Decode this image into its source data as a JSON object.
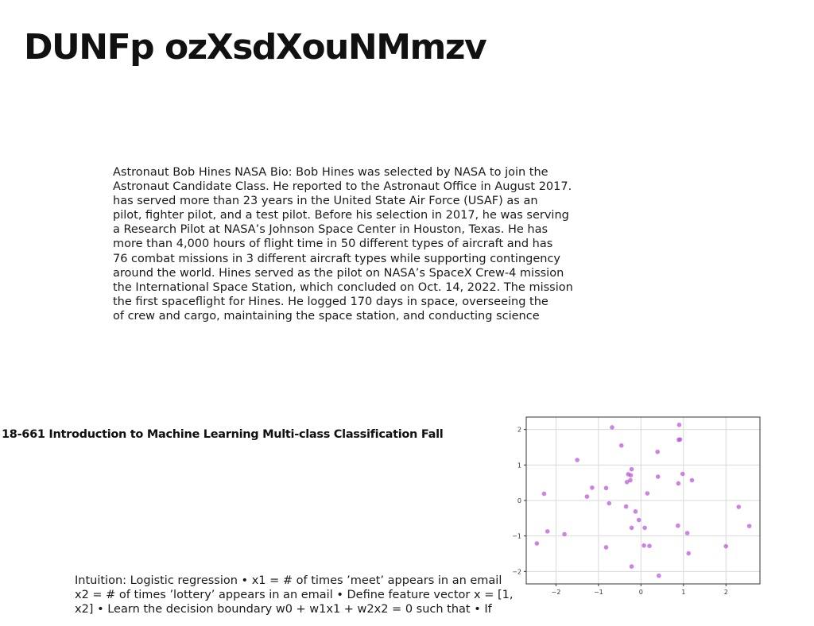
{
  "title": "DUNFp ozXsdXouNMmzv",
  "bio_lines": [
    "Astronaut Bob Hines NASA Bio: Bob Hines was selected by NASA to join the",
    "Astronaut Candidate Class. He reported to the Astronaut Office in August 2017.",
    "has served more than 23 years in the United State Air Force (USAF) as an",
    "pilot, fighter pilot, and a test pilot. Before his selection in 2017, he was serving",
    "a Research Pilot at NASA’s Johnson Space Center in Houston, Texas. He has",
    "more than 4,000 hours of flight time in 50 different types of aircraft and has",
    "76 combat missions in 3 different aircraft types while supporting contingency",
    "around the world. Hines served as the pilot on NASA’s SpaceX Crew-4 mission",
    "the International Space Station, which concluded on Oct. 14, 2022. The mission",
    "the first spaceflight for Hines. He logged 170 days in space, overseeing the",
    "of crew and cargo, maintaining the space station, and conducting science"
  ],
  "course_title": "18-661 Introduction to Machine Learning Multi-class Classification Fall",
  "intuition_lines": [
    "Intuition: Logistic regression • x1 = # of times ’meet’ appears in an email",
    "x2 = # of times ’lottery’ appears in an email • Define feature vector x = [1,",
    "x2] • Learn the decision boundary w0 + w1x1 + w2x2 = 0 such that • If"
  ],
  "chart_data": {
    "type": "scatter",
    "title": "",
    "xlabel": "",
    "ylabel": "",
    "xlim": [
      -2.7,
      2.8
    ],
    "ylim": [
      -2.35,
      2.35
    ],
    "xticks": [
      -2,
      -1,
      0,
      1,
      2
    ],
    "yticks": [
      -2,
      -1,
      0,
      1,
      2
    ],
    "xtick_labels": [
      "−2",
      "−1",
      "0",
      "1",
      "2"
    ],
    "ytick_labels": [
      "−2",
      "−1",
      "0",
      "1",
      "2"
    ],
    "grid": true,
    "point_color": "#b84fd8",
    "points": [
      {
        "x": -0.68,
        "y": 2.06
      },
      {
        "x": 0.9,
        "y": 2.13
      },
      {
        "x": -0.46,
        "y": 1.55
      },
      {
        "x": 0.89,
        "y": 1.71
      },
      {
        "x": 0.92,
        "y": 1.72
      },
      {
        "x": -1.5,
        "y": 1.14
      },
      {
        "x": 0.39,
        "y": 1.37
      },
      {
        "x": -0.22,
        "y": 0.88
      },
      {
        "x": -0.3,
        "y": 0.74
      },
      {
        "x": -0.24,
        "y": 0.71
      },
      {
        "x": 0.98,
        "y": 0.75
      },
      {
        "x": 0.4,
        "y": 0.67
      },
      {
        "x": -0.25,
        "y": 0.57
      },
      {
        "x": -0.33,
        "y": 0.52
      },
      {
        "x": 1.2,
        "y": 0.57
      },
      {
        "x": 0.88,
        "y": 0.48
      },
      {
        "x": -1.15,
        "y": 0.36
      },
      {
        "x": -0.82,
        "y": 0.35
      },
      {
        "x": 0.15,
        "y": 0.2
      },
      {
        "x": -2.28,
        "y": 0.19
      },
      {
        "x": -1.27,
        "y": 0.11
      },
      {
        "x": -0.75,
        "y": -0.08
      },
      {
        "x": -0.35,
        "y": -0.17
      },
      {
        "x": -0.13,
        "y": -0.31
      },
      {
        "x": -0.05,
        "y": -0.55
      },
      {
        "x": -0.22,
        "y": -0.77
      },
      {
        "x": 0.09,
        "y": -0.77
      },
      {
        "x": 0.87,
        "y": -0.71
      },
      {
        "x": 1.09,
        "y": -0.92
      },
      {
        "x": 2.3,
        "y": -0.18
      },
      {
        "x": 2.55,
        "y": -0.72
      },
      {
        "x": -2.2,
        "y": -0.87
      },
      {
        "x": -1.8,
        "y": -0.95
      },
      {
        "x": -2.45,
        "y": -1.21
      },
      {
        "x": -0.82,
        "y": -1.32
      },
      {
        "x": 0.07,
        "y": -1.27
      },
      {
        "x": 0.2,
        "y": -1.28
      },
      {
        "x": 2.0,
        "y": -1.29
      },
      {
        "x": 1.12,
        "y": -1.49
      },
      {
        "x": -0.22,
        "y": -1.86
      },
      {
        "x": 0.42,
        "y": -2.12
      }
    ]
  }
}
